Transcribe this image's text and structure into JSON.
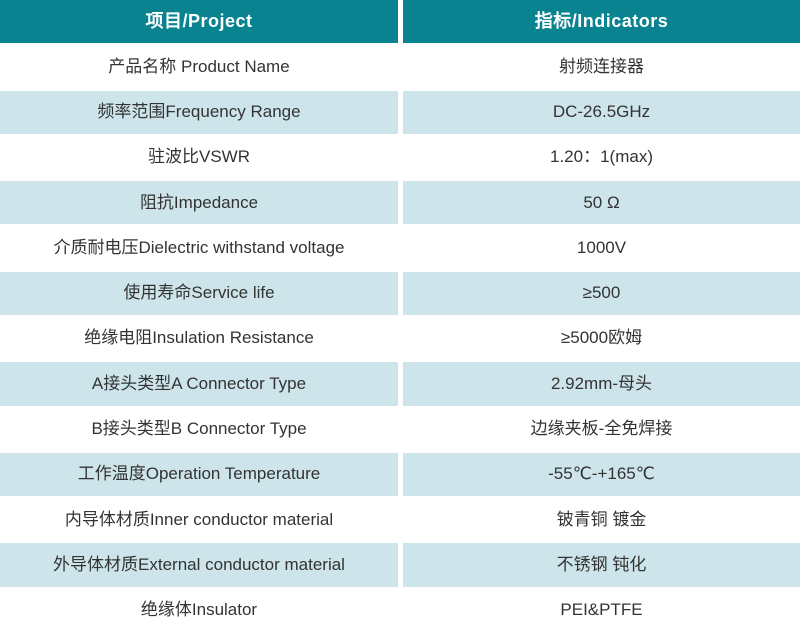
{
  "table": {
    "header": {
      "project": "项目/Project",
      "indicators": "指标/Indicators"
    },
    "rows": [
      {
        "project": "产品名称 Product Name",
        "indicator": "射频连接器"
      },
      {
        "project": "频率范围Frequency Range",
        "indicator": "DC-26.5GHz"
      },
      {
        "project": "驻波比VSWR",
        "indicator": "1.20：1(max)"
      },
      {
        "project": "阻抗Impedance",
        "indicator": "50 Ω"
      },
      {
        "project": "介质耐电压Dielectric withstand voltage",
        "indicator": "1000V"
      },
      {
        "project": "使用寿命Service life",
        "indicator": "≥500"
      },
      {
        "project": "绝缘电阻Insulation Resistance",
        "indicator": "≥5000欧姆"
      },
      {
        "project": "A接头类型A Connector Type",
        "indicator": "2.92mm-母头"
      },
      {
        "project": "B接头类型B Connector Type",
        "indicator": "边缘夹板-全免焊接"
      },
      {
        "project": "工作温度Operation Temperature",
        "indicator": "-55℃-+165℃"
      },
      {
        "project": "内导体材质Inner conductor material",
        "indicator": "铍青铜 镀金"
      },
      {
        "project": "外导体材质External conductor material",
        "indicator": "不锈钢 钝化"
      },
      {
        "project": "绝缘体Insulator",
        "indicator": "PEI&PTFE"
      }
    ],
    "colors": {
      "header_bg": "#0A8391",
      "header_text": "#FFFFFF",
      "row_bg": "#FFFFFF",
      "row_alt_bg": "#CDE5EA",
      "body_text": "#333333",
      "divider": "#FFFFFF"
    }
  }
}
